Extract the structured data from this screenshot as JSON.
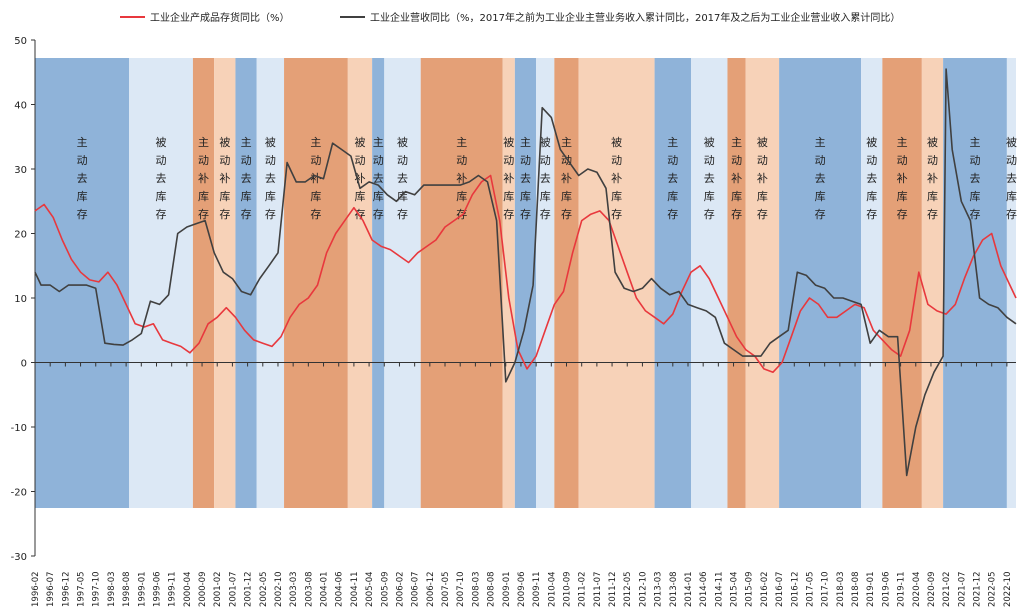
{
  "chart_data": {
    "type": "line",
    "title": "",
    "ylim": [
      -30,
      50
    ],
    "yticks": [
      -30,
      -20,
      -10,
      0,
      10,
      20,
      30,
      40,
      50
    ],
    "x_range": [
      "1996-02",
      "2023-01"
    ],
    "x_tick_labels": [
      "1996-02",
      "1996-07",
      "1996-12",
      "1997-05",
      "1997-10",
      "1998-03",
      "1998-08",
      "1999-01",
      "1999-06",
      "1999-11",
      "2000-04",
      "2000-09",
      "2001-02",
      "2001-07",
      "2001-12",
      "2002-05",
      "2002-10",
      "2003-03",
      "2003-08",
      "2004-01",
      "2004-06",
      "2004-11",
      "2005-04",
      "2005-09",
      "2006-02",
      "2006-07",
      "2006-12",
      "2007-05",
      "2007-10",
      "2008-03",
      "2008-08",
      "2009-01",
      "2009-06",
      "2009-11",
      "2010-04",
      "2010-09",
      "2011-02",
      "2011-07",
      "2011-12",
      "2012-05",
      "2012-10",
      "2013-03",
      "2013-08",
      "2014-01",
      "2014-06",
      "2014-11",
      "2015-04",
      "2015-09",
      "2016-02",
      "2016-07",
      "2016-12",
      "2017-05",
      "2017-10",
      "2018-03",
      "2018-08",
      "2019-01",
      "2019-06",
      "2019-11",
      "2020-04",
      "2020-09",
      "2021-02",
      "2021-07",
      "2021-12",
      "2022-05",
      "2022-10"
    ],
    "legend": [
      {
        "label": "工业企业产成品存货同比（%）",
        "color": "#e8383d"
      },
      {
        "label": "工业企业营收同比（%，2017年之前为工业企业主营业务收入累计同比，2017年及之后为工业企业营业收入累计同比）",
        "color": "#404040"
      }
    ],
    "bands": [
      {
        "start": "1996-02",
        "end": "1998-09",
        "type": "主动去库存",
        "color": "#8fb3d9",
        "label": "主动去库存"
      },
      {
        "start": "1998-09",
        "end": "2000-06",
        "type": "被动去库存",
        "color": "#dce8f5",
        "label": "被动去库存"
      },
      {
        "start": "2000-06",
        "end": "2001-01",
        "type": "主动补库存",
        "color": "#e4a077",
        "label": "主动补库存"
      },
      {
        "start": "2001-01",
        "end": "2001-08",
        "type": "被动补库存",
        "color": "#f7d2b8",
        "label": "被动补库存"
      },
      {
        "start": "2001-08",
        "end": "2002-03",
        "type": "主动去库存",
        "color": "#8fb3d9",
        "label": "主动去库存"
      },
      {
        "start": "2002-03",
        "end": "2002-12",
        "type": "被动去库存",
        "color": "#dce8f5",
        "label": "被动去库存"
      },
      {
        "start": "2002-12",
        "end": "2004-09",
        "type": "主动补库存",
        "color": "#e4a077",
        "label": "主动补库存"
      },
      {
        "start": "2004-09",
        "end": "2005-05",
        "type": "被动补库存",
        "color": "#f7d2b8",
        "label": "被动补库存"
      },
      {
        "start": "2005-05",
        "end": "2005-09",
        "type": "主动去库存",
        "color": "#8fb3d9",
        "label": "主动去库存"
      },
      {
        "start": "2005-09",
        "end": "2006-09",
        "type": "被动去库存",
        "color": "#dce8f5",
        "label": "被动去库存"
      },
      {
        "start": "2006-09",
        "end": "2008-12",
        "type": "主动补库存",
        "color": "#e4a077",
        "label": "主动补库存"
      },
      {
        "start": "2008-12",
        "end": "2009-04",
        "type": "被动补库存",
        "color": "#f7d2b8",
        "label": "被动补库存"
      },
      {
        "start": "2009-04",
        "end": "2009-11",
        "type": "主动去库存",
        "color": "#8fb3d9",
        "label": "主动去库存"
      },
      {
        "start": "2009-11",
        "end": "2010-05",
        "type": "被动去库存",
        "color": "#dce8f5",
        "label": "被动去库存"
      },
      {
        "start": "2010-05",
        "end": "2011-01",
        "type": "主动补库存",
        "color": "#e4a077",
        "label": "主动补库存"
      },
      {
        "start": "2011-01",
        "end": "2013-02",
        "type": "被动补库存",
        "color": "#f7d2b8",
        "label": "被动补库存"
      },
      {
        "start": "2013-02",
        "end": "2014-02",
        "type": "主动去库存",
        "color": "#8fb3d9",
        "label": "主动去库存"
      },
      {
        "start": "2014-02",
        "end": "2015-02",
        "type": "被动去库存",
        "color": "#dce8f5",
        "label": "被动去库存"
      },
      {
        "start": "2015-02",
        "end": "2015-08",
        "type": "主动补库存",
        "color": "#e4a077",
        "label": "主动补库存"
      },
      {
        "start": "2015-08",
        "end": "2016-07",
        "type": "被动补库存",
        "color": "#f7d2b8",
        "label": "被动补库存"
      },
      {
        "start": "2016-07",
        "end": "2018-10",
        "type": "主动去库存",
        "color": "#8fb3d9",
        "label": "主动去库存"
      },
      {
        "start": "2018-10",
        "end": "2019-05",
        "type": "被动去库存",
        "color": "#dce8f5",
        "label": "被动去库存"
      },
      {
        "start": "2019-05",
        "end": "2020-06",
        "type": "主动补库存",
        "color": "#e4a077",
        "label": "主动补库存"
      },
      {
        "start": "2020-06",
        "end": "2021-01",
        "type": "被动补库存",
        "color": "#f7d2b8",
        "label": "被动补库存"
      },
      {
        "start": "2021-01",
        "end": "2022-10",
        "type": "主动去库存",
        "color": "#8fb3d9",
        "label": "主动去库存"
      },
      {
        "start": "2022-10",
        "end": "2023-01",
        "type": "被动去库存",
        "color": "#dce8f5",
        "label": "被动去库存"
      }
    ],
    "series": [
      {
        "name": "工业企业产成品存货同比（%）",
        "color": "#e8383d",
        "points": [
          [
            "1996-02",
            23.5
          ],
          [
            "1996-05",
            24.5
          ],
          [
            "1996-08",
            22.5
          ],
          [
            "1996-11",
            19
          ],
          [
            "1997-02",
            16
          ],
          [
            "1997-05",
            14
          ],
          [
            "1997-08",
            12.8
          ],
          [
            "1997-11",
            12.5
          ],
          [
            "1998-02",
            14
          ],
          [
            "1998-05",
            12
          ],
          [
            "1998-08",
            9
          ],
          [
            "1998-11",
            6
          ],
          [
            "1999-02",
            5.5
          ],
          [
            "1999-05",
            6
          ],
          [
            "1999-08",
            3.5
          ],
          [
            "1999-11",
            3
          ],
          [
            "2000-02",
            2.5
          ],
          [
            "2000-05",
            1.5
          ],
          [
            "2000-08",
            3
          ],
          [
            "2000-11",
            6
          ],
          [
            "2001-02",
            7
          ],
          [
            "2001-05",
            8.5
          ],
          [
            "2001-08",
            7
          ],
          [
            "2001-11",
            5
          ],
          [
            "2002-02",
            3.5
          ],
          [
            "2002-05",
            3
          ],
          [
            "2002-08",
            2.5
          ],
          [
            "2002-11",
            4
          ],
          [
            "2003-02",
            7
          ],
          [
            "2003-05",
            9
          ],
          [
            "2003-08",
            10
          ],
          [
            "2003-11",
            12
          ],
          [
            "2004-02",
            17
          ],
          [
            "2004-05",
            20
          ],
          [
            "2004-08",
            22
          ],
          [
            "2004-11",
            24
          ],
          [
            "2005-02",
            22
          ],
          [
            "2005-05",
            19
          ],
          [
            "2005-08",
            18
          ],
          [
            "2005-11",
            17.5
          ],
          [
            "2006-02",
            16.5
          ],
          [
            "2006-05",
            15.5
          ],
          [
            "2006-08",
            17
          ],
          [
            "2006-11",
            18
          ],
          [
            "2007-02",
            19
          ],
          [
            "2007-05",
            21
          ],
          [
            "2007-08",
            22
          ],
          [
            "2007-11",
            23
          ],
          [
            "2008-02",
            26
          ],
          [
            "2008-05",
            28
          ],
          [
            "2008-08",
            29
          ],
          [
            "2008-11",
            22
          ],
          [
            "2009-02",
            10
          ],
          [
            "2009-05",
            2
          ],
          [
            "2009-08",
            -1
          ],
          [
            "2009-11",
            1
          ],
          [
            "2010-02",
            5
          ],
          [
            "2010-05",
            9
          ],
          [
            "2010-08",
            11
          ],
          [
            "2010-11",
            17
          ],
          [
            "2011-02",
            22
          ],
          [
            "2011-05",
            23
          ],
          [
            "2011-08",
            23.5
          ],
          [
            "2011-11",
            22
          ],
          [
            "2012-02",
            18
          ],
          [
            "2012-05",
            14
          ],
          [
            "2012-08",
            10
          ],
          [
            "2012-11",
            8
          ],
          [
            "2013-02",
            7
          ],
          [
            "2013-05",
            6
          ],
          [
            "2013-08",
            7.5
          ],
          [
            "2013-11",
            11
          ],
          [
            "2014-02",
            14
          ],
          [
            "2014-05",
            15
          ],
          [
            "2014-08",
            13
          ],
          [
            "2014-11",
            10
          ],
          [
            "2015-02",
            7
          ],
          [
            "2015-05",
            4
          ],
          [
            "2015-08",
            2
          ],
          [
            "2015-11",
            1
          ],
          [
            "2016-02",
            -1
          ],
          [
            "2016-05",
            -1.5
          ],
          [
            "2016-08",
            0
          ],
          [
            "2016-11",
            4
          ],
          [
            "2017-02",
            8
          ],
          [
            "2017-05",
            10
          ],
          [
            "2017-08",
            9
          ],
          [
            "2017-11",
            7
          ],
          [
            "2018-02",
            7
          ],
          [
            "2018-05",
            8
          ],
          [
            "2018-08",
            9
          ],
          [
            "2018-11",
            8.5
          ],
          [
            "2019-02",
            5
          ],
          [
            "2019-05",
            3.5
          ],
          [
            "2019-08",
            2
          ],
          [
            "2019-11",
            1
          ],
          [
            "2020-02",
            5
          ],
          [
            "2020-05",
            14
          ],
          [
            "2020-08",
            9
          ],
          [
            "2020-11",
            8
          ],
          [
            "2021-02",
            7.5
          ],
          [
            "2021-05",
            9
          ],
          [
            "2021-08",
            13
          ],
          [
            "2021-11",
            16.5
          ],
          [
            "2022-02",
            19
          ],
          [
            "2022-05",
            20
          ],
          [
            "2022-08",
            15
          ],
          [
            "2022-11",
            12
          ],
          [
            "2023-01",
            10
          ]
        ]
      },
      {
        "name": "工业企业营收同比（%，2017年之前为工业企业主营业务收入累计同比，2017年及之后为工业企业营业收入累计同比）",
        "color": "#404040",
        "points": [
          [
            "1996-02",
            14
          ],
          [
            "1996-04",
            12
          ],
          [
            "1996-07",
            12
          ],
          [
            "1996-10",
            11
          ],
          [
            "1997-01",
            12
          ],
          [
            "1997-04",
            12
          ],
          [
            "1997-07",
            12
          ],
          [
            "1997-10",
            11.5
          ],
          [
            "1998-01",
            3
          ],
          [
            "1998-04",
            2.8
          ],
          [
            "1998-07",
            2.7
          ],
          [
            "1998-10",
            3.5
          ],
          [
            "1999-01",
            4.5
          ],
          [
            "1999-04",
            9.5
          ],
          [
            "1999-07",
            9
          ],
          [
            "1999-10",
            10.5
          ],
          [
            "2000-01",
            20
          ],
          [
            "2000-04",
            21
          ],
          [
            "2000-07",
            21.5
          ],
          [
            "2000-10",
            22
          ],
          [
            "2001-01",
            17
          ],
          [
            "2001-04",
            14
          ],
          [
            "2001-07",
            13
          ],
          [
            "2001-10",
            11
          ],
          [
            "2002-01",
            10.5
          ],
          [
            "2002-04",
            13
          ],
          [
            "2002-07",
            15
          ],
          [
            "2002-10",
            17
          ],
          [
            "2003-01",
            31
          ],
          [
            "2003-04",
            28
          ],
          [
            "2003-07",
            28
          ],
          [
            "2003-10",
            29
          ],
          [
            "2004-01",
            28.5
          ],
          [
            "2004-04",
            34
          ],
          [
            "2004-07",
            33
          ],
          [
            "2004-10",
            32
          ],
          [
            "2005-01",
            27
          ],
          [
            "2005-04",
            28
          ],
          [
            "2005-07",
            27.5
          ],
          [
            "2005-10",
            26
          ],
          [
            "2006-01",
            25
          ],
          [
            "2006-04",
            26.5
          ],
          [
            "2006-07",
            26
          ],
          [
            "2006-10",
            27.5
          ],
          [
            "2007-01",
            27.5
          ],
          [
            "2007-04",
            27.5
          ],
          [
            "2007-07",
            27.5
          ],
          [
            "2007-10",
            27.5
          ],
          [
            "2008-01",
            28
          ],
          [
            "2008-04",
            29
          ],
          [
            "2008-07",
            28
          ],
          [
            "2008-10",
            22
          ],
          [
            "2009-01",
            -3
          ],
          [
            "2009-04",
            0
          ],
          [
            "2009-07",
            5
          ],
          [
            "2009-10",
            12
          ],
          [
            "2010-01",
            39.5
          ],
          [
            "2010-04",
            38
          ],
          [
            "2010-07",
            33
          ],
          [
            "2010-10",
            31
          ],
          [
            "2011-01",
            29
          ],
          [
            "2011-04",
            30
          ],
          [
            "2011-07",
            29.5
          ],
          [
            "2011-10",
            27
          ],
          [
            "2012-01",
            14
          ],
          [
            "2012-04",
            11.5
          ],
          [
            "2012-07",
            11
          ],
          [
            "2012-10",
            11.5
          ],
          [
            "2013-01",
            13
          ],
          [
            "2013-04",
            11.5
          ],
          [
            "2013-07",
            10.5
          ],
          [
            "2013-10",
            11
          ],
          [
            "2014-01",
            9
          ],
          [
            "2014-04",
            8.5
          ],
          [
            "2014-07",
            8
          ],
          [
            "2014-10",
            7
          ],
          [
            "2015-01",
            3
          ],
          [
            "2015-04",
            2
          ],
          [
            "2015-07",
            1
          ],
          [
            "2015-10",
            1
          ],
          [
            "2016-01",
            1
          ],
          [
            "2016-04",
            3
          ],
          [
            "2016-07",
            4
          ],
          [
            "2016-10",
            5
          ],
          [
            "2017-01",
            14
          ],
          [
            "2017-04",
            13.5
          ],
          [
            "2017-07",
            12
          ],
          [
            "2017-10",
            11.5
          ],
          [
            "2018-01",
            10
          ],
          [
            "2018-04",
            10
          ],
          [
            "2018-07",
            9.5
          ],
          [
            "2018-10",
            9
          ],
          [
            "2019-01",
            3
          ],
          [
            "2019-04",
            5
          ],
          [
            "2019-07",
            4
          ],
          [
            "2019-10",
            4
          ],
          [
            "2020-01",
            -17.5
          ],
          [
            "2020-04",
            -10
          ],
          [
            "2020-07",
            -5
          ],
          [
            "2020-10",
            -1.5
          ],
          [
            "2021-01",
            1
          ],
          [
            "2021-02",
            45.5
          ],
          [
            "2021-04",
            33
          ],
          [
            "2021-07",
            25
          ],
          [
            "2021-10",
            22
          ],
          [
            "2022-01",
            10
          ],
          [
            "2022-04",
            9
          ],
          [
            "2022-07",
            8.5
          ],
          [
            "2022-10",
            7
          ],
          [
            "2023-01",
            6
          ]
        ]
      }
    ]
  }
}
